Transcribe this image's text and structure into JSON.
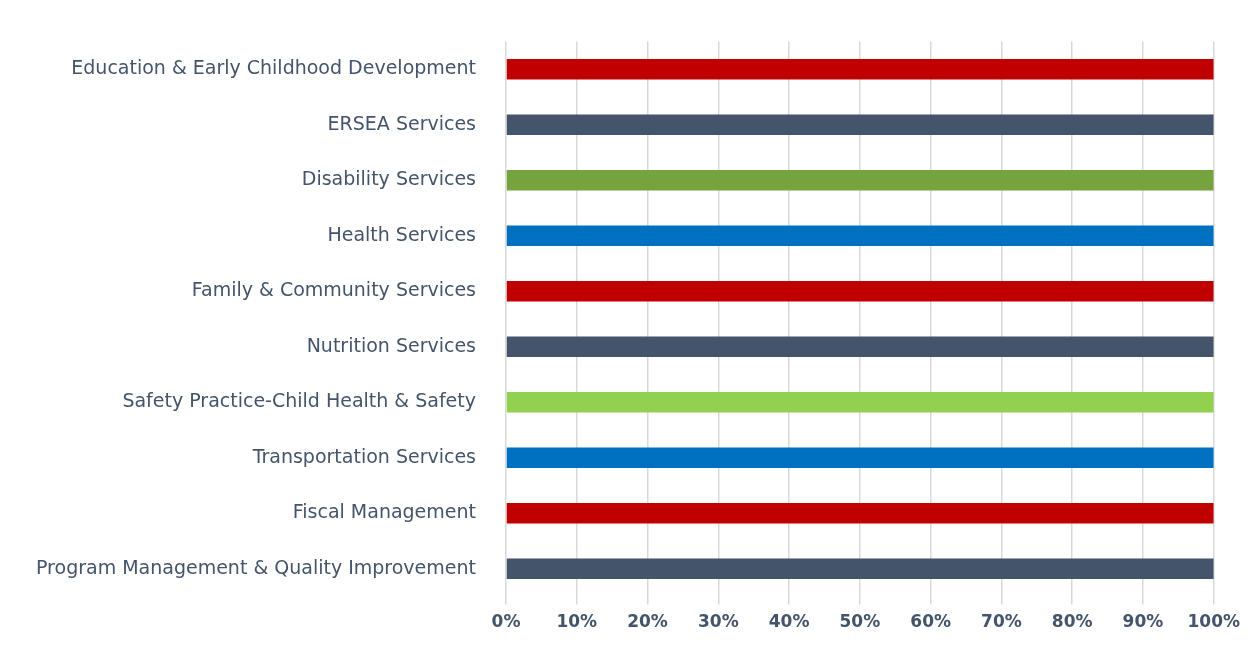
{
  "chart_data": {
    "type": "bar",
    "orientation": "horizontal",
    "categories": [
      "Education & Early Childhood Development",
      "ERSEA Services",
      "Disability Services",
      "Health Services",
      "Family & Community Services",
      "Nutrition Services",
      "Safety Practice-Child Health & Safety",
      "Transportation Services",
      "Fiscal Management",
      "Program Management & Quality Improvement"
    ],
    "values": [
      100,
      100,
      100,
      100,
      100,
      100,
      100,
      100,
      100,
      100
    ],
    "colors": [
      "#c00000",
      "#44546a",
      "#77a33f",
      "#0070c0",
      "#c00000",
      "#44546a",
      "#92d050",
      "#0070c0",
      "#c00000",
      "#44546a"
    ],
    "xlim": [
      0,
      100
    ],
    "xticks": [
      {
        "value": 0,
        "label": "0%"
      },
      {
        "value": 10,
        "label": "10%"
      },
      {
        "value": 20,
        "label": "20%"
      },
      {
        "value": 30,
        "label": "30%"
      },
      {
        "value": 40,
        "label": "40%"
      },
      {
        "value": 50,
        "label": "50%"
      },
      {
        "value": 60,
        "label": "60%"
      },
      {
        "value": 70,
        "label": "70%"
      },
      {
        "value": 80,
        "label": "80%"
      },
      {
        "value": 90,
        "label": "90%"
      },
      {
        "value": 100,
        "label": "100%"
      }
    ],
    "grid": "x",
    "legend": false
  }
}
